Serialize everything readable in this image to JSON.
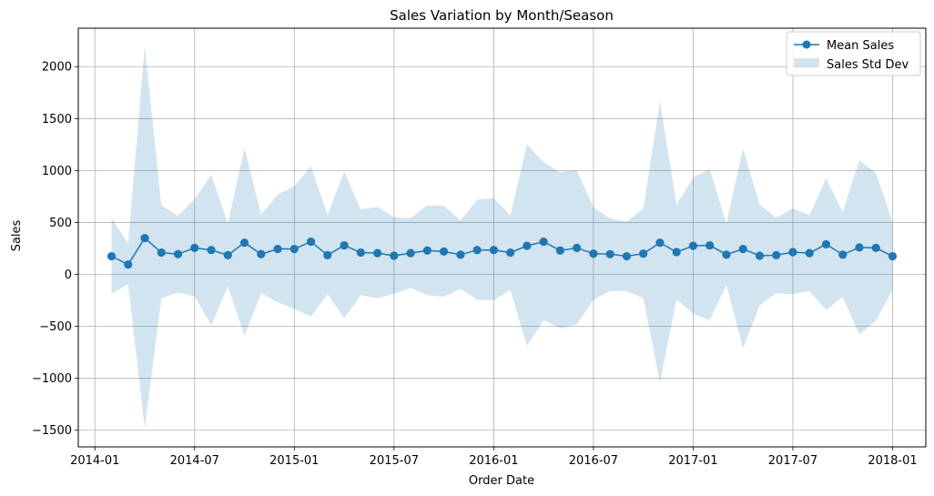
{
  "chart_data": {
    "type": "line",
    "title": "Sales Variation by Month/Season",
    "xlabel": "Order Date",
    "ylabel": "Sales",
    "x_ticks": [
      "2014-01",
      "2014-07",
      "2015-01",
      "2015-07",
      "2016-01",
      "2016-07",
      "2017-01",
      "2017-07",
      "2018-01"
    ],
    "y_ticks": [
      -1500,
      -1000,
      -500,
      0,
      500,
      1000,
      1500,
      2000
    ],
    "ylim": [
      -1660,
      2370
    ],
    "xlim": [
      "2013-12",
      "2018-03"
    ],
    "grid": true,
    "legend_position": "top-right",
    "x": [
      "2014-02",
      "2014-03",
      "2014-04",
      "2014-05",
      "2014-06",
      "2014-07",
      "2014-08",
      "2014-09",
      "2014-10",
      "2014-11",
      "2014-12",
      "2015-01",
      "2015-02",
      "2015-03",
      "2015-04",
      "2015-05",
      "2015-06",
      "2015-07",
      "2015-08",
      "2015-09",
      "2015-10",
      "2015-11",
      "2015-12",
      "2016-01",
      "2016-02",
      "2016-03",
      "2016-04",
      "2016-05",
      "2016-06",
      "2016-07",
      "2016-08",
      "2016-09",
      "2016-10",
      "2016-11",
      "2016-12",
      "2017-01",
      "2017-02",
      "2017-03",
      "2017-04",
      "2017-05",
      "2017-06",
      "2017-07",
      "2017-08",
      "2017-09",
      "2017-10",
      "2017-11",
      "2017-12",
      "2018-01"
    ],
    "series": [
      {
        "name": "Mean Sales",
        "color": "#1f77b4",
        "values": [
          175,
          95,
          350,
          210,
          195,
          255,
          235,
          185,
          305,
          195,
          245,
          245,
          315,
          185,
          280,
          210,
          205,
          180,
          205,
          230,
          220,
          190,
          235,
          235,
          210,
          275,
          315,
          230,
          255,
          200,
          195,
          175,
          200,
          305,
          215,
          275,
          280,
          190,
          245,
          180,
          185,
          215,
          205,
          290,
          190,
          260,
          255,
          175
        ]
      },
      {
        "name": "Sales Std Dev",
        "color": "#1f77b4",
        "type": "area",
        "upper": [
          545,
          295,
          2200,
          665,
          565,
          725,
          960,
          490,
          1215,
          575,
          770,
          850,
          1040,
          570,
          990,
          625,
          650,
          550,
          540,
          665,
          660,
          520,
          720,
          735,
          570,
          1250,
          1080,
          985,
          1005,
          645,
          540,
          510,
          635,
          1665,
          670,
          935,
          1010,
          490,
          1210,
          670,
          545,
          635,
          570,
          925,
          600,
          1100,
          975,
          505
        ],
        "lower": [
          -185,
          -95,
          -1480,
          -230,
          -175,
          -210,
          -490,
          -115,
          -590,
          -180,
          -270,
          -330,
          -405,
          -190,
          -420,
          -200,
          -230,
          -185,
          -130,
          -200,
          -215,
          -140,
          -245,
          -250,
          -150,
          -690,
          -440,
          -520,
          -480,
          -245,
          -160,
          -160,
          -230,
          -1040,
          -240,
          -380,
          -440,
          -100,
          -710,
          -300,
          -180,
          -190,
          -160,
          -345,
          -215,
          -580,
          -445,
          -150
        ]
      }
    ]
  }
}
